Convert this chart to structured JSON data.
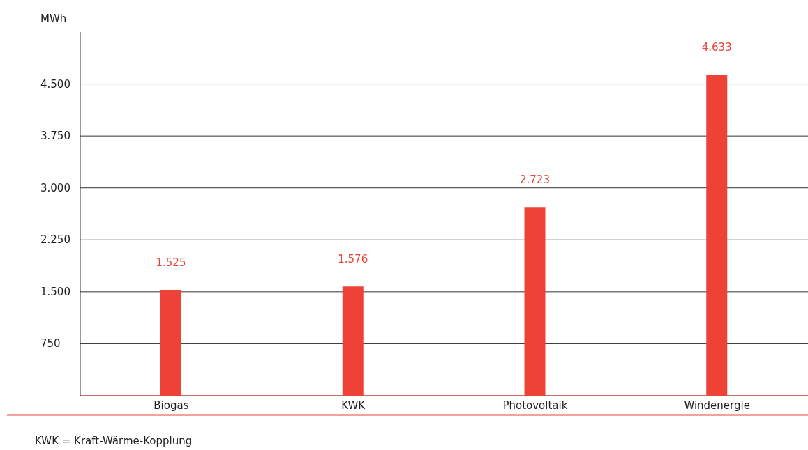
{
  "chart_data": {
    "type": "bar",
    "ylabel": "MWh",
    "categories": [
      "Biogas",
      "KWK",
      "Photovoltaik",
      "Windenergie"
    ],
    "values": [
      1525,
      1576,
      2723,
      4633
    ],
    "value_labels": [
      "1.525",
      "1.576",
      "2.723",
      "4.633"
    ],
    "color": "#ee4236",
    "ylim": [
      0,
      5250
    ],
    "yticks": [
      {
        "value": 0,
        "label": null
      },
      750,
      {
        "value": 1500,
        "label": "1.500"
      },
      {
        "value": 2250,
        "label": "2.250"
      },
      {
        "value": 3000,
        "label": "3.000"
      },
      {
        "value": 3750,
        "label": "3.750"
      },
      {
        "value": 4500,
        "label": "4.500"
      }
    ],
    "grid": "y",
    "annotations": [
      "KWK = Kraft-Wärme-Kopplung"
    ]
  }
}
